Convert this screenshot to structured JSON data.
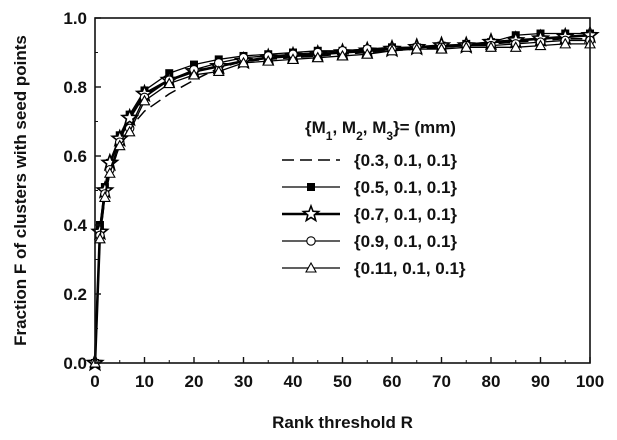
{
  "chart_data": {
    "type": "line",
    "xlabel": "Rank threshold R",
    "ylabel": "Fraction F of clusters with seed points",
    "xlim": [
      0,
      100
    ],
    "ylim": [
      0.0,
      1.0
    ],
    "x_ticks": [
      "0",
      "10",
      "20",
      "30",
      "40",
      "50",
      "60",
      "70",
      "80",
      "90",
      "100"
    ],
    "y_ticks": [
      "0.0",
      "0.2",
      "0.4",
      "0.6",
      "0.8",
      "1.0"
    ],
    "grid": false,
    "legend_title": {
      "prefix": "{M",
      "s1": "1",
      "sep1": ", M",
      "s2": "2",
      "sep2": ", M",
      "s3": "3",
      "suffix": "}= (mm)"
    },
    "legend_position": "center-right",
    "series": [
      {
        "name": "{0.3, 0.1, 0.1}",
        "style": "dashed",
        "marker": "none",
        "color": "#000000",
        "x": [
          0,
          1,
          2,
          3,
          5,
          7,
          10,
          15,
          20,
          25,
          30,
          35,
          40,
          45,
          50,
          55,
          60,
          65,
          70,
          75,
          80,
          85,
          90,
          95,
          100
        ],
        "y": [
          0.0,
          0.36,
          0.48,
          0.55,
          0.63,
          0.68,
          0.73,
          0.78,
          0.82,
          0.855,
          0.875,
          0.88,
          0.885,
          0.89,
          0.895,
          0.9,
          0.905,
          0.91,
          0.915,
          0.92,
          0.925,
          0.93,
          0.935,
          0.94,
          0.94
        ]
      },
      {
        "name": "{0.5, 0.1, 0.1}",
        "style": "solid",
        "marker": "square",
        "color": "#000000",
        "x": [
          0,
          1,
          2,
          3,
          5,
          7,
          10,
          15,
          20,
          25,
          30,
          35,
          40,
          45,
          50,
          55,
          60,
          65,
          70,
          75,
          80,
          85,
          90,
          95,
          100
        ],
        "y": [
          0.0,
          0.4,
          0.51,
          0.58,
          0.66,
          0.72,
          0.79,
          0.84,
          0.865,
          0.88,
          0.89,
          0.895,
          0.9,
          0.905,
          0.905,
          0.91,
          0.915,
          0.915,
          0.92,
          0.925,
          0.93,
          0.95,
          0.955,
          0.955,
          0.955
        ]
      },
      {
        "name": "{0.7, 0.1, 0.1}",
        "style": "solid-bold",
        "marker": "star",
        "color": "#000000",
        "x": [
          0,
          1,
          2,
          3,
          5,
          7,
          10,
          15,
          20,
          25,
          30,
          35,
          40,
          45,
          50,
          55,
          60,
          65,
          70,
          75,
          80,
          85,
          90,
          95,
          100
        ],
        "y": [
          0.0,
          0.38,
          0.5,
          0.58,
          0.65,
          0.71,
          0.78,
          0.82,
          0.845,
          0.86,
          0.875,
          0.885,
          0.89,
          0.895,
          0.9,
          0.905,
          0.91,
          0.915,
          0.92,
          0.92,
          0.93,
          0.935,
          0.94,
          0.945,
          0.95
        ]
      },
      {
        "name": "{0.9, 0.1, 0.1}",
        "style": "solid",
        "marker": "circle",
        "color": "#000000",
        "x": [
          0,
          1,
          2,
          3,
          5,
          7,
          10,
          15,
          20,
          25,
          30,
          35,
          40,
          45,
          50,
          55,
          60,
          65,
          70,
          75,
          80,
          85,
          90,
          95,
          100
        ],
        "y": [
          0.0,
          0.37,
          0.49,
          0.56,
          0.64,
          0.68,
          0.77,
          0.82,
          0.85,
          0.87,
          0.885,
          0.89,
          0.895,
          0.9,
          0.905,
          0.91,
          0.91,
          0.915,
          0.915,
          0.92,
          0.92,
          0.925,
          0.93,
          0.935,
          0.935
        ]
      },
      {
        "name": "{0.11, 0.1, 0.1}",
        "style": "solid",
        "marker": "triangle",
        "color": "#000000",
        "x": [
          0,
          1,
          2,
          3,
          5,
          7,
          10,
          15,
          20,
          25,
          30,
          35,
          40,
          45,
          50,
          55,
          60,
          65,
          70,
          75,
          80,
          85,
          90,
          95,
          100
        ],
        "y": [
          0.0,
          0.36,
          0.48,
          0.55,
          0.63,
          0.67,
          0.76,
          0.81,
          0.835,
          0.845,
          0.87,
          0.875,
          0.88,
          0.885,
          0.89,
          0.895,
          0.905,
          0.91,
          0.91,
          0.915,
          0.915,
          0.915,
          0.92,
          0.925,
          0.925
        ]
      }
    ]
  }
}
